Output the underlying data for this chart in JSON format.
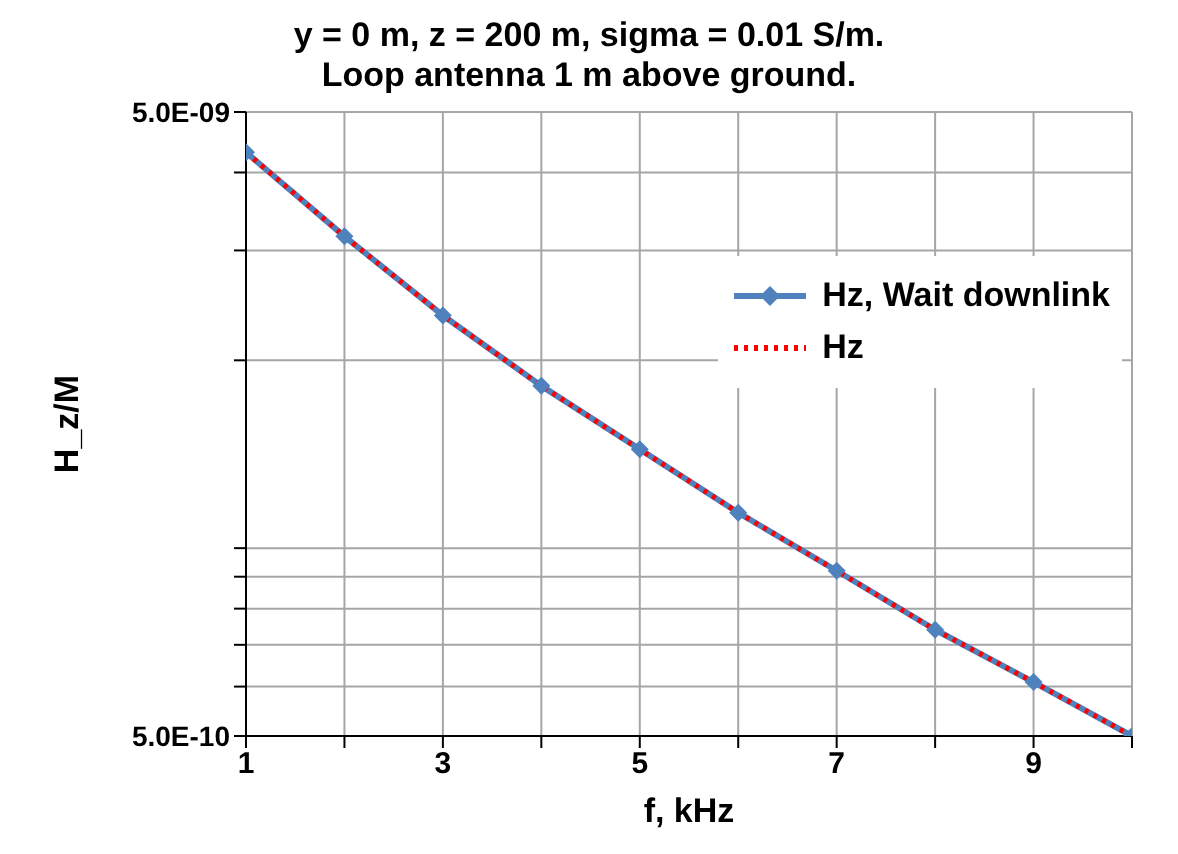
{
  "chart_data": {
    "type": "line",
    "title": "y = 0 m, z = 200 m, sigma = 0.01 S/m.",
    "subtitle": "Loop antenna 1 m above ground.",
    "xlabel": "f, kHz",
    "ylabel": "H_z/M",
    "x": [
      1,
      2,
      3,
      4,
      5,
      6,
      7,
      8,
      9,
      10
    ],
    "series": [
      {
        "name": "Hz, Wait downlink",
        "color": "#4f81bd",
        "marker": "diamond",
        "line_style": "solid",
        "values": [
          4.31e-09,
          3.16e-09,
          2.36e-09,
          1.82e-09,
          1.44e-09,
          1.14e-09,
          9.2e-10,
          7.4e-10,
          6.1e-10,
          5e-10
        ]
      },
      {
        "name": "Hz",
        "color": "#ff0000",
        "marker": "none",
        "line_style": "dotted",
        "values": [
          4.31e-09,
          3.16e-09,
          2.36e-09,
          1.82e-09,
          1.44e-09,
          1.14e-09,
          9.2e-10,
          7.4e-10,
          6.1e-10,
          5e-10
        ]
      }
    ],
    "log": "y",
    "xlim": [
      1,
      10
    ],
    "xticks": [
      1,
      {
        "value": 2,
        "label": null
      },
      3,
      {
        "value": 4,
        "label": null
      },
      5,
      {
        "value": 6,
        "label": null
      },
      7,
      {
        "value": 8,
        "label": null
      },
      9,
      {
        "value": 10,
        "label": null
      }
    ],
    "ylim": [
      5e-10,
      5e-09
    ],
    "yticks": [
      {
        "value": 5e-10,
        "label": "5.0E-10"
      },
      {
        "value": 6e-10,
        "label": null
      },
      {
        "value": 7e-10,
        "label": null
      },
      {
        "value": 8e-10,
        "label": null
      },
      {
        "value": 9e-10,
        "label": null
      },
      {
        "value": 1e-09,
        "label": null
      },
      {
        "value": 2e-09,
        "label": null
      },
      {
        "value": 3e-09,
        "label": null
      },
      {
        "value": 4e-09,
        "label": null
      },
      {
        "value": 5e-09,
        "label": "5.0E-09"
      }
    ],
    "grid": true,
    "legend": "top right"
  }
}
